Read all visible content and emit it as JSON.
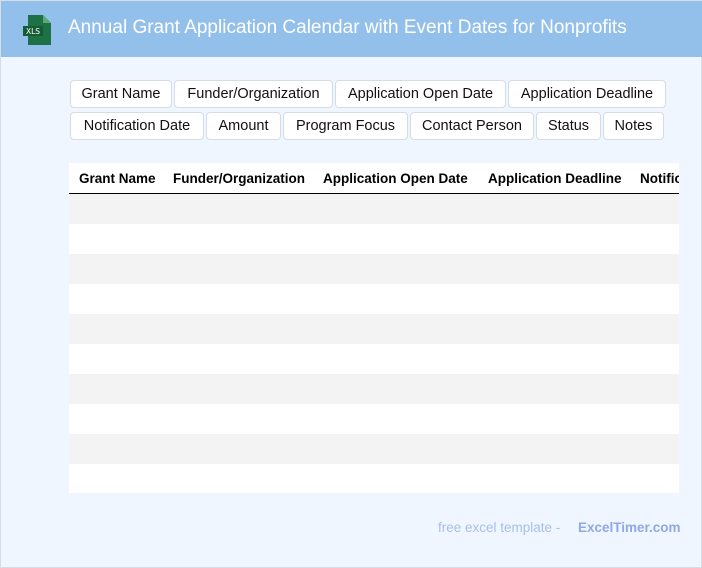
{
  "header": {
    "title": "Annual Grant Application Calendar with Event Dates for Nonprofits",
    "logo_text": "XLS",
    "logo_color": "#1e7145",
    "bar_color": "#93c0eb"
  },
  "field_chips": [
    "Grant Name",
    "Funder/Organization",
    "Application Open Date",
    "Application Deadline",
    "Notification Date",
    "Amount",
    "Program Focus",
    "Contact Person",
    "Status",
    "Notes"
  ],
  "table": {
    "columns": [
      "Grant Name",
      "Funder/Organization",
      "Application Open Date",
      "Application Deadline",
      "Notification Date"
    ],
    "row_count": 10,
    "stripe_color": "#f3f3f3"
  },
  "footer": {
    "text": "free excel template -",
    "link": "ExcelTimer.com"
  }
}
